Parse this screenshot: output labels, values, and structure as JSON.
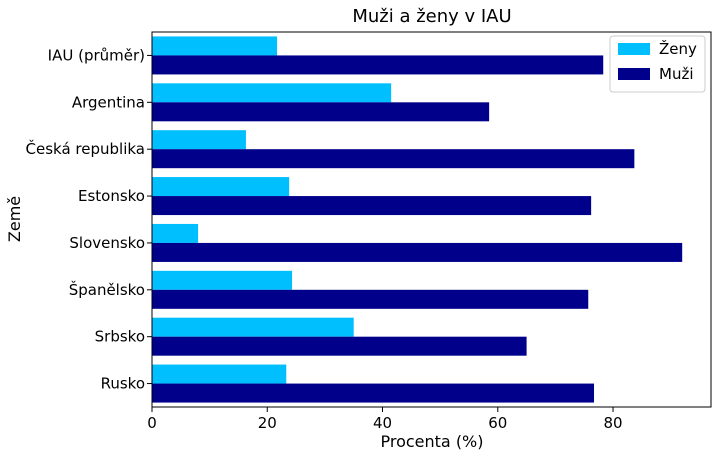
{
  "chart_data": {
    "type": "bar",
    "orientation": "horizontal",
    "title": "Muži a ženy v IAU",
    "xlabel": "Procenta (%)",
    "ylabel": "Země",
    "categories": [
      "IAU (průměr)",
      "Argentina",
      "Česká republika",
      "Estonsko",
      "Slovensko",
      "Španělsko",
      "Srbsko",
      "Rusko"
    ],
    "series": [
      {
        "name": "Ženy",
        "color": "#00BFFF",
        "values": [
          21.7,
          41.5,
          16.3,
          23.8,
          8.0,
          24.3,
          35.0,
          23.3
        ]
      },
      {
        "name": "Muži",
        "color": "#00008B",
        "values": [
          78.3,
          58.5,
          83.7,
          76.2,
          92.0,
          75.7,
          65.0,
          76.7
        ]
      }
    ],
    "xlim": [
      0,
      97
    ],
    "xticks": [
      "0",
      "20",
      "40",
      "60",
      "80"
    ],
    "grid": false,
    "legend_position": "top-right"
  }
}
